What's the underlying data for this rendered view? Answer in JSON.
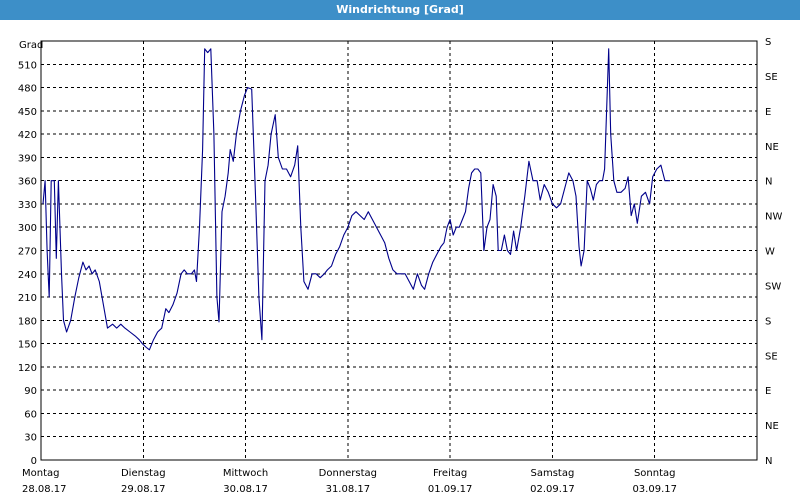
{
  "window": {
    "title": "Windrichtung [Grad]"
  },
  "chart_data": {
    "type": "line",
    "title": "Windrichtung [Grad]",
    "ylabel": "Grad",
    "ylim": [
      0,
      540
    ],
    "yticks": [
      0,
      30,
      60,
      90,
      120,
      150,
      180,
      210,
      240,
      270,
      300,
      330,
      360,
      390,
      420,
      450,
      480,
      510
    ],
    "right_axis_labels": [
      "N",
      "NE",
      "E",
      "SE",
      "S",
      "SW",
      "W",
      "NW",
      "N",
      "NE",
      "E",
      "SE",
      "S"
    ],
    "right_axis_values": [
      0,
      45,
      90,
      135,
      180,
      225,
      270,
      315,
      360,
      405,
      450,
      495,
      540
    ],
    "xlim": [
      0,
      7
    ],
    "x_unit": "days since 28.08.17",
    "day_labels": [
      {
        "day": "Montag",
        "date": "28.08.17"
      },
      {
        "day": "Dienstag",
        "date": "29.08.17"
      },
      {
        "day": "Mittwoch",
        "date": "30.08.17"
      },
      {
        "day": "Donnerstag",
        "date": "31.08.17"
      },
      {
        "day": "Freitag",
        "date": "01.09.17"
      },
      {
        "day": "Samstag",
        "date": "02.09.17"
      },
      {
        "day": "Sonntag",
        "date": "03.09.17"
      }
    ],
    "grid": true,
    "series": [
      {
        "color": "#00008b",
        "points": [
          [
            0.02,
            330
          ],
          [
            0.04,
            360
          ],
          [
            0.06,
            270
          ],
          [
            0.08,
            210
          ],
          [
            0.1,
            360
          ],
          [
            0.13,
            360
          ],
          [
            0.15,
            260
          ],
          [
            0.17,
            360
          ],
          [
            0.2,
            240
          ],
          [
            0.22,
            180
          ],
          [
            0.25,
            165
          ],
          [
            0.29,
            180
          ],
          [
            0.33,
            210
          ],
          [
            0.37,
            235
          ],
          [
            0.41,
            255
          ],
          [
            0.44,
            245
          ],
          [
            0.47,
            250
          ],
          [
            0.5,
            240
          ],
          [
            0.53,
            245
          ],
          [
            0.57,
            230
          ],
          [
            0.61,
            200
          ],
          [
            0.65,
            170
          ],
          [
            0.7,
            175
          ],
          [
            0.74,
            170
          ],
          [
            0.78,
            175
          ],
          [
            0.82,
            170
          ],
          [
            0.87,
            165
          ],
          [
            0.92,
            160
          ],
          [
            0.96,
            155
          ],
          [
            0.99,
            150
          ],
          [
            1.03,
            145
          ],
          [
            1.06,
            142
          ],
          [
            1.1,
            155
          ],
          [
            1.14,
            165
          ],
          [
            1.18,
            170
          ],
          [
            1.22,
            195
          ],
          [
            1.25,
            190
          ],
          [
            1.29,
            200
          ],
          [
            1.33,
            215
          ],
          [
            1.37,
            240
          ],
          [
            1.4,
            245
          ],
          [
            1.43,
            240
          ],
          [
            1.47,
            240
          ],
          [
            1.5,
            245
          ],
          [
            1.52,
            230
          ],
          [
            1.55,
            300
          ],
          [
            1.58,
            400
          ],
          [
            1.6,
            530
          ],
          [
            1.63,
            525
          ],
          [
            1.66,
            530
          ],
          [
            1.69,
            420
          ],
          [
            1.72,
            210
          ],
          [
            1.74,
            178
          ],
          [
            1.77,
            320
          ],
          [
            1.8,
            340
          ],
          [
            1.83,
            370
          ],
          [
            1.85,
            400
          ],
          [
            1.88,
            385
          ],
          [
            1.91,
            420
          ],
          [
            1.95,
            450
          ],
          [
            1.99,
            470
          ],
          [
            2.02,
            480
          ],
          [
            2.06,
            478
          ],
          [
            2.1,
            330
          ],
          [
            2.13,
            210
          ],
          [
            2.16,
            155
          ],
          [
            2.19,
            360
          ],
          [
            2.22,
            380
          ],
          [
            2.25,
            420
          ],
          [
            2.29,
            445
          ],
          [
            2.32,
            390
          ],
          [
            2.36,
            375
          ],
          [
            2.4,
            375
          ],
          [
            2.44,
            365
          ],
          [
            2.48,
            380
          ],
          [
            2.51,
            405
          ],
          [
            2.54,
            300
          ],
          [
            2.57,
            230
          ],
          [
            2.61,
            220
          ],
          [
            2.65,
            240
          ],
          [
            2.69,
            240
          ],
          [
            2.73,
            235
          ],
          [
            2.77,
            240
          ],
          [
            2.8,
            245
          ],
          [
            2.84,
            250
          ],
          [
            2.88,
            265
          ],
          [
            2.92,
            275
          ],
          [
            2.96,
            290
          ],
          [
            3.0,
            300
          ],
          [
            3.04,
            315
          ],
          [
            3.08,
            320
          ],
          [
            3.12,
            315
          ],
          [
            3.16,
            310
          ],
          [
            3.2,
            320
          ],
          [
            3.24,
            310
          ],
          [
            3.28,
            300
          ],
          [
            3.32,
            290
          ],
          [
            3.36,
            280
          ],
          [
            3.4,
            260
          ],
          [
            3.44,
            245
          ],
          [
            3.48,
            240
          ],
          [
            3.52,
            240
          ],
          [
            3.56,
            240
          ],
          [
            3.6,
            230
          ],
          [
            3.64,
            220
          ],
          [
            3.68,
            240
          ],
          [
            3.72,
            225
          ],
          [
            3.75,
            220
          ],
          [
            3.79,
            240
          ],
          [
            3.83,
            255
          ],
          [
            3.87,
            265
          ],
          [
            3.91,
            275
          ],
          [
            3.94,
            280
          ],
          [
            3.97,
            300
          ],
          [
            4.0,
            310
          ],
          [
            4.03,
            290
          ],
          [
            4.06,
            300
          ],
          [
            4.09,
            300
          ],
          [
            4.12,
            310
          ],
          [
            4.15,
            320
          ],
          [
            4.18,
            350
          ],
          [
            4.21,
            370
          ],
          [
            4.24,
            375
          ],
          [
            4.27,
            375
          ],
          [
            4.3,
            370
          ],
          [
            4.33,
            270
          ],
          [
            4.36,
            300
          ],
          [
            4.39,
            310
          ],
          [
            4.42,
            355
          ],
          [
            4.45,
            340
          ],
          [
            4.47,
            270
          ],
          [
            4.5,
            270
          ],
          [
            4.53,
            290
          ],
          [
            4.56,
            270
          ],
          [
            4.59,
            265
          ],
          [
            4.62,
            295
          ],
          [
            4.65,
            270
          ],
          [
            4.69,
            300
          ],
          [
            4.73,
            340
          ],
          [
            4.77,
            385
          ],
          [
            4.81,
            360
          ],
          [
            4.85,
            360
          ],
          [
            4.88,
            335
          ],
          [
            4.92,
            355
          ],
          [
            4.96,
            345
          ],
          [
            5.0,
            330
          ],
          [
            5.04,
            325
          ],
          [
            5.08,
            330
          ],
          [
            5.12,
            350
          ],
          [
            5.16,
            370
          ],
          [
            5.2,
            360
          ],
          [
            5.23,
            340
          ],
          [
            5.26,
            275
          ],
          [
            5.28,
            250
          ],
          [
            5.31,
            270
          ],
          [
            5.34,
            360
          ],
          [
            5.37,
            350
          ],
          [
            5.4,
            335
          ],
          [
            5.43,
            355
          ],
          [
            5.46,
            360
          ],
          [
            5.49,
            360
          ],
          [
            5.51,
            375
          ],
          [
            5.53,
            450
          ],
          [
            5.55,
            530
          ],
          [
            5.57,
            420
          ],
          [
            5.6,
            360
          ],
          [
            5.63,
            345
          ],
          [
            5.67,
            345
          ],
          [
            5.71,
            350
          ],
          [
            5.74,
            365
          ],
          [
            5.77,
            315
          ],
          [
            5.8,
            330
          ],
          [
            5.83,
            305
          ],
          [
            5.87,
            340
          ],
          [
            5.91,
            345
          ],
          [
            5.95,
            330
          ],
          [
            5.98,
            365
          ],
          [
            6.02,
            375
          ],
          [
            6.06,
            380
          ],
          [
            6.1,
            360
          ],
          [
            6.15,
            360
          ]
        ]
      }
    ]
  }
}
